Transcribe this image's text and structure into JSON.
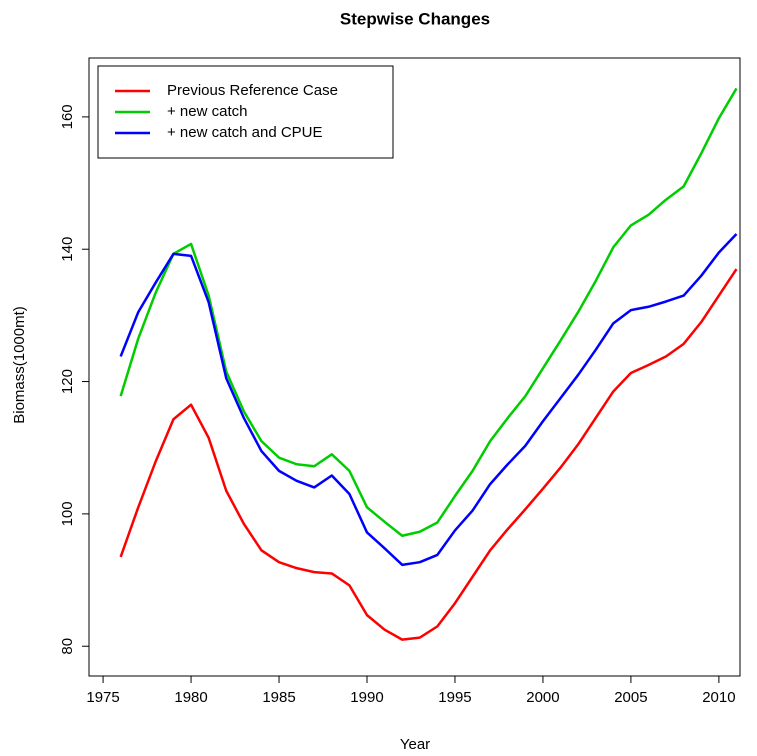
{
  "chart_data": {
    "type": "line",
    "title": "Stepwise Changes",
    "x_label": "Year",
    "y_label": "Biomass(1000mt)",
    "x": [
      1976,
      1977,
      1978,
      1979,
      1980,
      1981,
      1982,
      1983,
      1984,
      1985,
      1986,
      1987,
      1988,
      1989,
      1990,
      1991,
      1992,
      1993,
      1994,
      1995,
      1996,
      1997,
      1998,
      1999,
      2000,
      2001,
      2002,
      2003,
      2004,
      2005,
      2006,
      2007,
      2008,
      2009,
      2010,
      2011
    ],
    "series": [
      {
        "name": "Previous Reference Case",
        "color": "#ff0000",
        "values": [
          93.5,
          101,
          108,
          114.3,
          116.5,
          111.5,
          103.5,
          98.5,
          94.5,
          92.7,
          91.8,
          91.2,
          91,
          89.2,
          84.7,
          82.5,
          81,
          81.3,
          83,
          86.5,
          90.5,
          94.5,
          97.7,
          100.7,
          103.8,
          107,
          110.5,
          114.5,
          118.5,
          121.3,
          122.5,
          123.8,
          125.7,
          129,
          133,
          137
        ]
      },
      {
        "name": "+ new catch",
        "color": "#00cd00",
        "values": [
          117.8,
          126.5,
          133.5,
          139.3,
          140.8,
          133,
          121.5,
          115.5,
          111,
          108.5,
          107.5,
          107.2,
          109,
          106.5,
          101,
          98.8,
          96.7,
          97.3,
          98.7,
          102.7,
          106.5,
          111,
          114.5,
          117.8,
          122,
          126.2,
          130.5,
          135.2,
          140.3,
          143.6,
          145.2,
          147.5,
          149.5,
          154.5,
          159.8,
          164.3
        ]
      },
      {
        "name": "+ new catch and CPUE",
        "color": "#0000ff",
        "values": [
          123.8,
          130.5,
          135,
          139.3,
          139,
          132,
          120.5,
          114.5,
          109.5,
          106.5,
          105,
          104,
          105.8,
          103,
          97.2,
          94.8,
          92.3,
          92.7,
          93.8,
          97.5,
          100.5,
          104.5,
          107.5,
          110.3,
          114,
          117.5,
          121,
          124.8,
          128.8,
          130.8,
          131.3,
          132.1,
          133,
          136,
          139.5,
          142.3
        ]
      }
    ],
    "xlim": [
      1974.2,
      2011.2
    ],
    "ylim": [
      75.5,
      168.9
    ],
    "xticks": [
      1975,
      1980,
      1985,
      1990,
      1995,
      2000,
      2005,
      2010
    ],
    "yticks": [
      80,
      100,
      120,
      140,
      160
    ],
    "legend": "topleft",
    "grid": false
  }
}
